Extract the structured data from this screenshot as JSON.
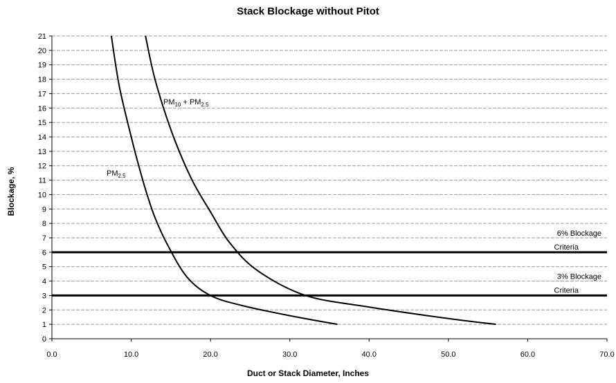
{
  "chart_data": {
    "type": "line",
    "title": "Stack Blockage without Pitot",
    "xlabel": "Duct or Stack Diameter, Inches",
    "ylabel": "Blockage, %",
    "xlim": [
      0,
      70
    ],
    "ylim": [
      0,
      21
    ],
    "x_ticks": [
      "0.0",
      "10.0",
      "20.0",
      "30.0",
      "40.0",
      "50.0",
      "60.0",
      "70.0"
    ],
    "y_ticks": [
      "0",
      "1",
      "2",
      "3",
      "4",
      "5",
      "6",
      "7",
      "8",
      "9",
      "10",
      "11",
      "12",
      "13",
      "14",
      "15",
      "16",
      "17",
      "18",
      "19",
      "20",
      "21"
    ],
    "grid": "horizontal dashed",
    "series": [
      {
        "name": "PM2.5",
        "label": {
          "base": "PM",
          "sub": "2.5"
        },
        "x": [
          7.5,
          8.5,
          10,
          11,
          12,
          13,
          14.5,
          17,
          20,
          24,
          30,
          36
        ],
        "y": [
          21,
          17.5,
          14,
          11.9,
          10,
          8.4,
          6.6,
          4.3,
          3.0,
          2.3,
          1.6,
          1.0
        ]
      },
      {
        "name": "PM10 + PM2.5",
        "label": {
          "base": "PM",
          "sub1": "10",
          "mid": " + PM",
          "sub2": "2.5"
        },
        "x": [
          11.8,
          13,
          15,
          17.5,
          20,
          22.5,
          26,
          32,
          40,
          50,
          56
        ],
        "y": [
          21,
          18,
          14.5,
          11.2,
          8.8,
          6.6,
          4.7,
          3.0,
          2.2,
          1.4,
          1.0
        ]
      }
    ],
    "reference_lines": [
      {
        "y": 6,
        "label_line1": "6% Blockage",
        "label_line2": "Criteria"
      },
      {
        "y": 3,
        "label_line1": "3% Blockage",
        "label_line2": "Criteria"
      }
    ]
  }
}
